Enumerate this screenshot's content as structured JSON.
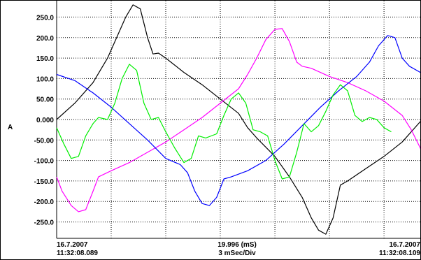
{
  "chart_data": {
    "type": "line",
    "ylabel": "A",
    "ylim": [
      -290,
      290
    ],
    "xlim": [
      0,
      19.996
    ],
    "y_ticks": [
      "250.0",
      "200.0",
      "150.0",
      "100.0",
      "50.00",
      "0.000",
      "-50.00",
      "-100.0",
      "-150.0",
      "-200.0",
      "-250.0"
    ],
    "grid": true,
    "x_footer": {
      "left_date": "16.7.2007",
      "left_time": "11:32:08.089",
      "center_span": "19.996 (mS)",
      "center_scale": "3 mSec/Div",
      "right_date": "16.7.2007",
      "right_time": "11:32:08.109"
    },
    "x_div_ms": 3,
    "series": [
      {
        "color": "#000000",
        "points": [
          [
            0,
            0
          ],
          [
            1.0,
            40
          ],
          [
            2.0,
            90
          ],
          [
            2.8,
            150
          ],
          [
            3.3,
            200
          ],
          [
            3.8,
            250
          ],
          [
            4.2,
            280
          ],
          [
            4.6,
            270
          ],
          [
            5.0,
            200
          ],
          [
            5.3,
            160
          ],
          [
            5.6,
            162
          ],
          [
            6.0,
            150
          ],
          [
            7.0,
            115
          ],
          [
            8.0,
            85
          ],
          [
            9.0,
            50
          ],
          [
            10.0,
            15
          ],
          [
            10.5,
            -20
          ],
          [
            11.0,
            -45
          ],
          [
            12.0,
            -90
          ],
          [
            12.8,
            -140
          ],
          [
            13.5,
            -190
          ],
          [
            14.0,
            -240
          ],
          [
            14.4,
            -270
          ],
          [
            14.8,
            -280
          ],
          [
            15.2,
            -240
          ],
          [
            15.6,
            -160
          ],
          [
            16.0,
            -150
          ],
          [
            17.0,
            -120
          ],
          [
            18.0,
            -90
          ],
          [
            19.0,
            -55
          ],
          [
            20.0,
            -5
          ]
        ]
      },
      {
        "color": "#ff00ff",
        "points": [
          [
            0,
            -140
          ],
          [
            0.3,
            -175
          ],
          [
            0.8,
            -210
          ],
          [
            1.2,
            -225
          ],
          [
            1.6,
            -220
          ],
          [
            2.0,
            -175
          ],
          [
            2.3,
            -140
          ],
          [
            3.0,
            -125
          ],
          [
            4.0,
            -105
          ],
          [
            5.0,
            -80
          ],
          [
            6.0,
            -55
          ],
          [
            7.0,
            -25
          ],
          [
            8.0,
            5
          ],
          [
            9.0,
            40
          ],
          [
            10.0,
            75
          ],
          [
            10.5,
            110
          ],
          [
            11.0,
            150
          ],
          [
            11.5,
            195
          ],
          [
            12.0,
            220
          ],
          [
            12.4,
            222
          ],
          [
            12.8,
            190
          ],
          [
            13.2,
            140
          ],
          [
            13.5,
            130
          ],
          [
            14.0,
            125
          ],
          [
            15.0,
            105
          ],
          [
            16.0,
            90
          ],
          [
            17.0,
            70
          ],
          [
            18.0,
            45
          ],
          [
            19.0,
            10
          ],
          [
            19.5,
            -25
          ],
          [
            20.0,
            -70
          ],
          [
            20.4,
            -130
          ]
        ]
      },
      {
        "color": "#0000ff",
        "points": [
          [
            0,
            110
          ],
          [
            1.0,
            95
          ],
          [
            2.0,
            65
          ],
          [
            3.0,
            30
          ],
          [
            4.0,
            -10
          ],
          [
            5.0,
            -50
          ],
          [
            6.0,
            -95
          ],
          [
            6.8,
            -110
          ],
          [
            7.2,
            -130
          ],
          [
            7.6,
            -175
          ],
          [
            8.0,
            -205
          ],
          [
            8.4,
            -210
          ],
          [
            8.8,
            -190
          ],
          [
            9.2,
            -145
          ],
          [
            9.6,
            -140
          ],
          [
            10.5,
            -125
          ],
          [
            11.5,
            -100
          ],
          [
            12.5,
            -60
          ],
          [
            13.5,
            -15
          ],
          [
            14.5,
            30
          ],
          [
            15.5,
            70
          ],
          [
            16.5,
            105
          ],
          [
            17.2,
            140
          ],
          [
            17.7,
            180
          ],
          [
            18.2,
            205
          ],
          [
            18.6,
            200
          ],
          [
            19.0,
            150
          ],
          [
            19.4,
            130
          ],
          [
            20.0,
            115
          ],
          [
            20.4,
            110
          ]
        ]
      },
      {
        "color": "#00ee00",
        "points": [
          [
            0,
            -20
          ],
          [
            0.4,
            -60
          ],
          [
            0.8,
            -95
          ],
          [
            1.2,
            -90
          ],
          [
            1.6,
            -40
          ],
          [
            2.0,
            -10
          ],
          [
            2.3,
            5
          ],
          [
            2.8,
            0
          ],
          [
            3.2,
            40
          ],
          [
            3.6,
            100
          ],
          [
            4.0,
            135
          ],
          [
            4.4,
            120
          ],
          [
            4.8,
            40
          ],
          [
            5.2,
            0
          ],
          [
            5.6,
            5
          ],
          [
            6.0,
            -30
          ],
          [
            6.5,
            -70
          ],
          [
            7.0,
            -105
          ],
          [
            7.4,
            -95
          ],
          [
            7.8,
            -40
          ],
          [
            8.2,
            -45
          ],
          [
            8.8,
            -35
          ],
          [
            9.2,
            10
          ],
          [
            9.6,
            50
          ],
          [
            10.0,
            65
          ],
          [
            10.4,
            40
          ],
          [
            10.8,
            -25
          ],
          [
            11.2,
            -30
          ],
          [
            11.6,
            -40
          ],
          [
            12.0,
            -100
          ],
          [
            12.4,
            -145
          ],
          [
            12.8,
            -140
          ],
          [
            13.2,
            -80
          ],
          [
            13.6,
            -10
          ],
          [
            14.0,
            -30
          ],
          [
            14.4,
            -15
          ],
          [
            14.8,
            20
          ],
          [
            15.2,
            60
          ],
          [
            15.6,
            85
          ],
          [
            16.0,
            70
          ],
          [
            16.4,
            10
          ],
          [
            16.8,
            -5
          ],
          [
            17.2,
            5
          ],
          [
            17.6,
            0
          ],
          [
            18.0,
            -20
          ],
          [
            18.4,
            -30
          ]
        ]
      }
    ]
  }
}
